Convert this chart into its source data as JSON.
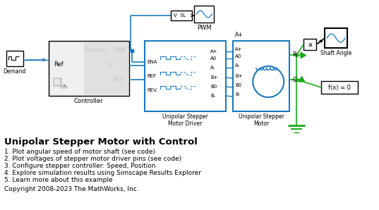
{
  "title": "Unipolar Stepper Motor with Control",
  "bg_color": "#ffffff",
  "text_color": "#000000",
  "blue": "#1a7abf",
  "green": "#1aaa1a",
  "gray_light": "#e8e8e8",
  "gray_mid": "#c8c8c8",
  "list_items": [
    "1. Plot angular speed of motor shaft (see code)",
    "2. Plot voltages of stepper motor driver pins (see code)",
    "3. Configure stepper controller: Speed, Position",
    "4. Explore simulation results using Simscape Results Explorer",
    "5. Learn more about this example"
  ],
  "copyright": "Copyright 2008-2023 The MathWorks, Inc."
}
